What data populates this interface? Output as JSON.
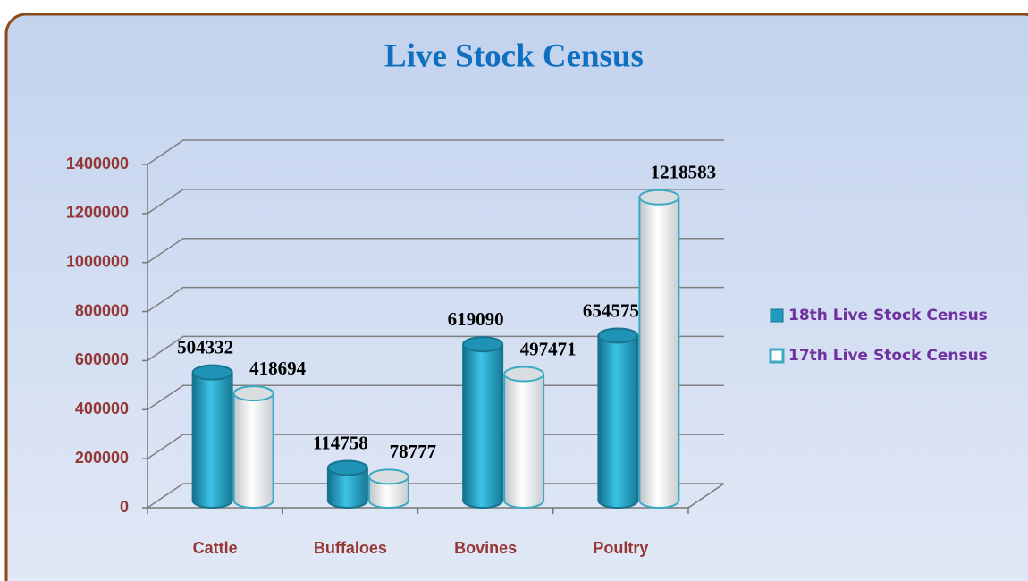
{
  "chart_data": {
    "type": "bar3d",
    "title": "Live Stock Census",
    "categories": [
      "Cattle",
      "Buffaloes",
      "Bovines",
      "Poultry"
    ],
    "series": [
      {
        "name": "18th Live Stock Census",
        "color": "#1f9bbf",
        "values": [
          504332,
          114758,
          619090,
          654575
        ]
      },
      {
        "name": "17th Live Stock Census",
        "color": "#ffffff",
        "values": [
          418694,
          78777,
          497471,
          1218583
        ]
      }
    ],
    "ylim": [
      0,
      1400000
    ],
    "yticks": [
      0,
      200000,
      400000,
      600000,
      800000,
      1000000,
      1200000,
      1400000
    ],
    "grid": true,
    "legend": "right"
  }
}
